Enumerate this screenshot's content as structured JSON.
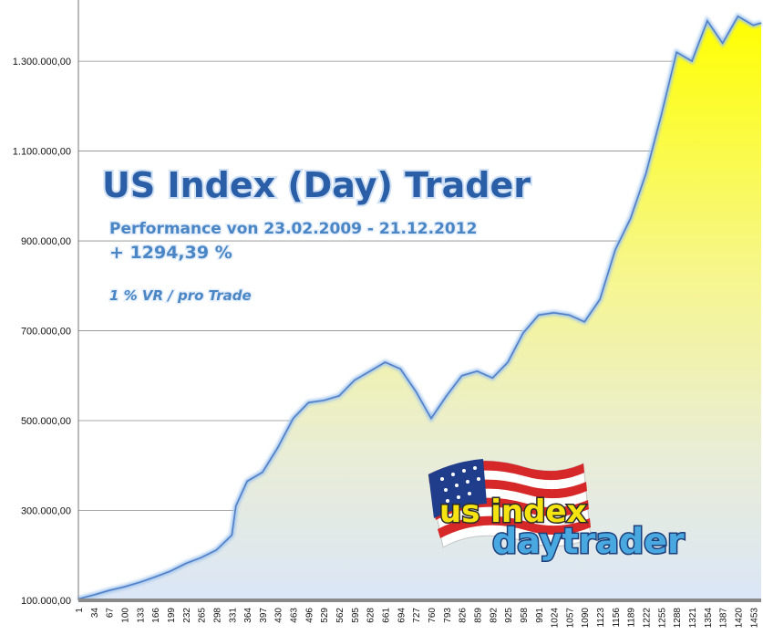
{
  "chart_data": {
    "type": "area",
    "title": "US Index (Day) Trader",
    "subtitle": "Performance  von  23.02.2009 - 21.12.2012",
    "performance": "+ 1294,39 %",
    "risk_note": "1 % VR / pro Trade",
    "logo_text": [
      "us index",
      "daytrader"
    ],
    "ylim": [
      100000,
      1420000
    ],
    "y_ticks": [
      100000,
      300000,
      500000,
      700000,
      900000,
      1100000,
      1300000
    ],
    "y_tick_labels": [
      "100.000,00",
      "300.000,00",
      "500.000,00",
      "700.000,00",
      "900.000,00",
      "1.100.000,00",
      "1.300.000,00"
    ],
    "xlim": [
      1,
      1470
    ],
    "x_ticks": [
      1,
      34,
      67,
      100,
      133,
      166,
      199,
      232,
      265,
      298,
      331,
      364,
      397,
      430,
      463,
      496,
      529,
      562,
      595,
      628,
      661,
      694,
      727,
      760,
      793,
      826,
      859,
      892,
      925,
      958,
      991,
      1024,
      1057,
      1090,
      1123,
      1156,
      1189,
      1222,
      1255,
      1288,
      1321,
      1354,
      1387,
      1420,
      1453
    ],
    "grid": true,
    "series": [
      {
        "x": [
          1,
          34,
          67,
          100,
          133,
          166,
          199,
          232,
          265,
          298,
          331,
          340,
          364,
          397,
          430,
          463,
          496,
          529,
          562,
          595,
          628,
          661,
          694,
          727,
          760,
          793,
          826,
          859,
          892,
          925,
          958,
          991,
          1024,
          1057,
          1090,
          1123,
          1156,
          1189,
          1222,
          1255,
          1288,
          1321,
          1354,
          1387,
          1420,
          1453,
          1470
        ],
        "values": [
          103000,
          112000,
          122000,
          130000,
          140000,
          152000,
          165000,
          182000,
          195000,
          212000,
          245000,
          310000,
          365000,
          385000,
          440000,
          505000,
          540000,
          545000,
          555000,
          590000,
          610000,
          630000,
          615000,
          565000,
          505000,
          555000,
          600000,
          610000,
          595000,
          630000,
          695000,
          735000,
          740000,
          735000,
          720000,
          770000,
          880000,
          950000,
          1050000,
          1180000,
          1320000,
          1300000,
          1390000,
          1340000,
          1400000,
          1380000,
          1385000
        ]
      }
    ]
  }
}
